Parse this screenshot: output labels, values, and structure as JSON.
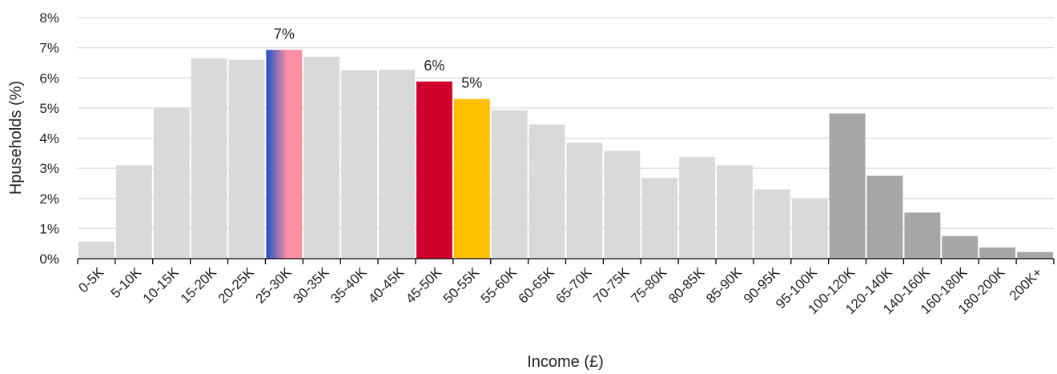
{
  "chart_data": {
    "type": "bar",
    "xlabel": "Income (£)",
    "ylabel": "Hpuseholds (%)",
    "ylim": [
      0,
      8
    ],
    "yticks": [
      "0%",
      "1%",
      "2%",
      "3%",
      "4%",
      "5%",
      "6%",
      "7%",
      "8%"
    ],
    "grid": true,
    "categories": [
      "0-5K",
      "5-10K",
      "10-15K",
      "15-20K",
      "20-25K",
      "25-30K",
      "30-35K",
      "35-40K",
      "40-45K",
      "45-50K",
      "50-55K",
      "55-60K",
      "60-65K",
      "65-70K",
      "70-75K",
      "75-80K",
      "80-85K",
      "85-90K",
      "90-95K",
      "95-100K",
      "100-120K",
      "120-140K",
      "140-160K",
      "160-180K",
      "180-200K",
      "200K+"
    ],
    "values": [
      0.57,
      3.1,
      5.0,
      6.65,
      6.6,
      6.93,
      6.7,
      6.25,
      6.27,
      5.88,
      5.3,
      4.93,
      4.45,
      3.85,
      3.58,
      2.68,
      3.37,
      3.1,
      2.3,
      1.97,
      4.82,
      2.75,
      1.53,
      0.75,
      0.37,
      0.22
    ],
    "data_labels": {
      "25-30K": "7%",
      "45-50K": "6%",
      "50-55K": "5%"
    },
    "colors": {
      "default": "#d9d9d9",
      "dark": "#a6a6a6",
      "highlight_red": "#d0002e",
      "highlight_yellow": "#ffc000",
      "gradient_blue": "#1f4fc8",
      "gradient_pink": "#ff8fa3"
    },
    "bar_styles": {
      "25-30K": "gradient",
      "45-50K": "highlight_red",
      "50-55K": "highlight_yellow",
      "100-120K": "dark",
      "120-140K": "dark",
      "140-160K": "dark",
      "160-180K": "dark",
      "180-200K": "dark",
      "200K+": "dark"
    }
  }
}
